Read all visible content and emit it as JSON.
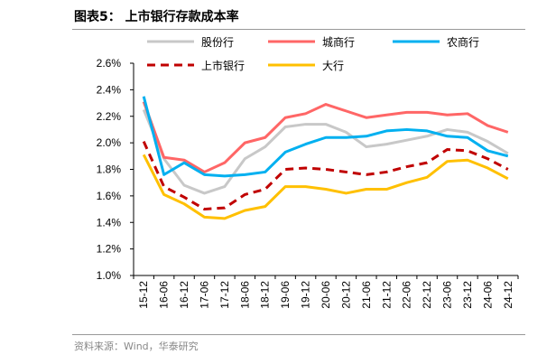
{
  "title": "图表5：  上市银行存款成本率",
  "source": "资料来源：Wind，华泰研究",
  "chart_data": {
    "type": "line",
    "categories": [
      "15-12",
      "16-06",
      "16-12",
      "17-06",
      "17-12",
      "18-06",
      "18-12",
      "19-06",
      "19-12",
      "20-06",
      "20-12",
      "21-06",
      "21-12",
      "22-06",
      "22-12",
      "23-06",
      "23-12",
      "24-06",
      "24-12"
    ],
    "yticks": [
      "1.0%",
      "1.2%",
      "1.4%",
      "1.6%",
      "1.8%",
      "2.0%",
      "2.2%",
      "2.4%",
      "2.6%"
    ],
    "ylim": [
      1.0,
      2.6
    ],
    "legend_position": "top",
    "grid": false,
    "series": [
      {
        "name": "股份行",
        "color": "#c8c8c8",
        "dash": false,
        "values": [
          2.25,
          1.88,
          1.68,
          1.62,
          1.67,
          1.88,
          1.97,
          2.12,
          2.14,
          2.14,
          2.08,
          1.97,
          1.99,
          2.02,
          2.05,
          2.1,
          2.08,
          2.01,
          1.92
        ]
      },
      {
        "name": "城商行",
        "color": "#ff6666",
        "dash": false,
        "values": [
          2.31,
          1.89,
          1.87,
          1.78,
          1.85,
          2.0,
          2.04,
          2.19,
          2.22,
          2.29,
          2.24,
          2.19,
          2.21,
          2.23,
          2.23,
          2.21,
          2.22,
          2.13,
          2.08
        ]
      },
      {
        "name": "农商行",
        "color": "#00b0f0",
        "dash": false,
        "values": [
          2.35,
          1.76,
          1.85,
          1.76,
          1.75,
          1.76,
          1.78,
          1.93,
          1.99,
          2.04,
          2.04,
          2.05,
          2.09,
          2.1,
          2.09,
          2.05,
          2.04,
          1.94,
          1.9
        ]
      },
      {
        "name": "上市银行",
        "color": "#c00000",
        "dash": true,
        "values": [
          2.01,
          1.67,
          1.59,
          1.5,
          1.51,
          1.61,
          1.65,
          1.8,
          1.81,
          1.8,
          1.78,
          1.76,
          1.78,
          1.82,
          1.85,
          1.95,
          1.94,
          1.88,
          1.8
        ]
      },
      {
        "name": "大行",
        "color": "#ffc000",
        "dash": false,
        "values": [
          1.91,
          1.61,
          1.54,
          1.44,
          1.43,
          1.49,
          1.52,
          1.67,
          1.67,
          1.65,
          1.62,
          1.65,
          1.65,
          1.7,
          1.74,
          1.86,
          1.87,
          1.81,
          1.73
        ]
      }
    ]
  }
}
